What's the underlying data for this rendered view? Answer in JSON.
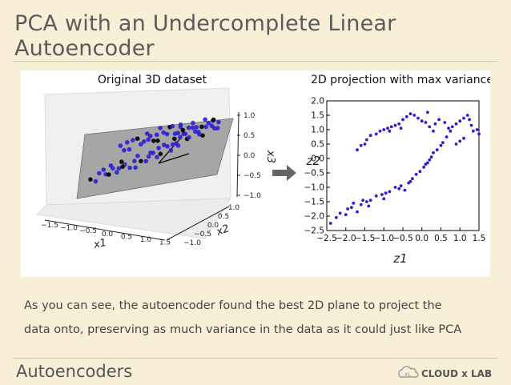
{
  "slide": {
    "title": "PCA with an Undercomplete Linear Autoencoder",
    "caption_line1": "As you can see, the autoencoder found the best 2D plane to project the",
    "caption_line2": "data onto, preserving as much variance in the data as it could just like PCA",
    "footer": "Autoencoders",
    "logo_text": "CLOUD x LAB",
    "accent_color": "#2b1fd0"
  },
  "chart_data": [
    {
      "type": "scatter",
      "title": "Original 3D dataset",
      "xlabel": "x1",
      "ylabel": "x2",
      "zlabel": "x3",
      "x_ticks": [
        "−1.5",
        "−1.0",
        "−0.5",
        "0.0",
        "0.5",
        "1.0",
        "1.5"
      ],
      "y_ticks": [
        "−1.0",
        "−0.5",
        "0.0",
        "0.5",
        "1.0"
      ],
      "z_ticks": [
        "1.0",
        "0.5",
        "0.0",
        "−0.5",
        "−1.0"
      ],
      "xlim": [
        -1.5,
        1.5
      ],
      "ylim": [
        -1.0,
        1.0
      ],
      "zlim": [
        -1.0,
        1.0
      ]
    },
    {
      "type": "scatter",
      "title": "2D projection with max variance",
      "xlabel": "z1",
      "ylabel": "z2",
      "xlim": [
        -2.5,
        1.5
      ],
      "ylim": [
        -2.5,
        2.0
      ],
      "x_ticks": [
        "−2.5",
        "−2.0",
        "−1.5",
        "−1.0",
        "−0.5",
        "0.0",
        "0.5",
        "1.0",
        "1.5"
      ],
      "x_tick_values": [
        -2.5,
        -2.0,
        -1.5,
        -1.0,
        -0.5,
        0.0,
        0.5,
        1.0,
        1.5
      ],
      "y_ticks": [
        "2.0",
        "1.5",
        "1.0",
        "0.5",
        "0.0",
        "−0.5",
        "−1.0",
        "−1.5",
        "−2.0",
        "−2.5"
      ],
      "y_tick_values": [
        2.0,
        1.5,
        1.0,
        0.5,
        0.0,
        -0.5,
        -1.0,
        -1.5,
        -2.0,
        -2.5
      ],
      "grid": false,
      "series": [
        {
          "color": "#2b1fd0",
          "points": [
            [
              -2.4,
              -2.25
            ],
            [
              -2.25,
              -2.05
            ],
            [
              -2.15,
              -1.9
            ],
            [
              -2.0,
              -1.95
            ],
            [
              -1.95,
              -1.75
            ],
            [
              -1.85,
              -1.7
            ],
            [
              -1.8,
              -1.55
            ],
            [
              -1.7,
              -1.85
            ],
            [
              -1.6,
              -1.6
            ],
            [
              -1.55,
              -1.45
            ],
            [
              -1.45,
              -1.5
            ],
            [
              -1.35,
              -1.45
            ],
            [
              -1.2,
              -1.3
            ],
            [
              -1.05,
              -1.25
            ],
            [
              -0.95,
              -1.2
            ],
            [
              -0.85,
              -1.15
            ],
            [
              -0.7,
              -1.0
            ],
            [
              -0.55,
              -0.95
            ],
            [
              -0.45,
              -1.1
            ],
            [
              -0.35,
              -0.85
            ],
            [
              -0.25,
              -0.7
            ],
            [
              -0.15,
              -0.55
            ],
            [
              -0.05,
              -0.45
            ],
            [
              0.05,
              -0.3
            ],
            [
              0.1,
              -0.2
            ],
            [
              0.15,
              -0.15
            ],
            [
              0.2,
              -0.05
            ],
            [
              0.25,
              0.05
            ],
            [
              0.3,
              0.2
            ],
            [
              0.4,
              0.3
            ],
            [
              0.5,
              0.45
            ],
            [
              0.55,
              0.55
            ],
            [
              0.65,
              0.75
            ],
            [
              0.75,
              0.95
            ],
            [
              0.8,
              1.1
            ],
            [
              0.9,
              1.2
            ],
            [
              1.0,
              1.3
            ],
            [
              1.1,
              1.4
            ],
            [
              1.2,
              1.5
            ],
            [
              1.25,
              1.35
            ],
            [
              1.3,
              1.15
            ],
            [
              1.35,
              0.95
            ],
            [
              1.45,
              1.0
            ],
            [
              1.5,
              0.85
            ],
            [
              1.1,
              0.7
            ],
            [
              1.0,
              0.6
            ],
            [
              0.9,
              0.5
            ],
            [
              -0.3,
              -0.8
            ],
            [
              -0.6,
              -1.05
            ],
            [
              -1.0,
              -1.4
            ],
            [
              -1.4,
              -1.65
            ],
            [
              -1.7,
              0.3
            ],
            [
              -1.6,
              0.45
            ],
            [
              -1.45,
              0.65
            ],
            [
              -1.35,
              0.8
            ],
            [
              -1.2,
              0.85
            ],
            [
              -1.1,
              0.95
            ],
            [
              -1.0,
              1.0
            ],
            [
              -0.9,
              1.05
            ],
            [
              -0.8,
              1.1
            ],
            [
              -0.7,
              1.15
            ],
            [
              -0.6,
              1.2
            ],
            [
              -0.5,
              1.35
            ],
            [
              -0.4,
              1.45
            ],
            [
              -0.3,
              1.55
            ],
            [
              -0.2,
              1.5
            ],
            [
              -0.1,
              1.4
            ],
            [
              0.0,
              1.3
            ],
            [
              0.1,
              1.25
            ],
            [
              0.2,
              1.1
            ],
            [
              0.3,
              0.95
            ],
            [
              0.35,
              1.2
            ],
            [
              0.45,
              1.35
            ],
            [
              -1.5,
              0.5
            ],
            [
              -0.85,
              0.95
            ],
            [
              -0.55,
              1.05
            ],
            [
              0.15,
              1.6
            ],
            [
              0.6,
              1.25
            ],
            [
              0.7,
              1.05
            ]
          ]
        }
      ]
    }
  ]
}
